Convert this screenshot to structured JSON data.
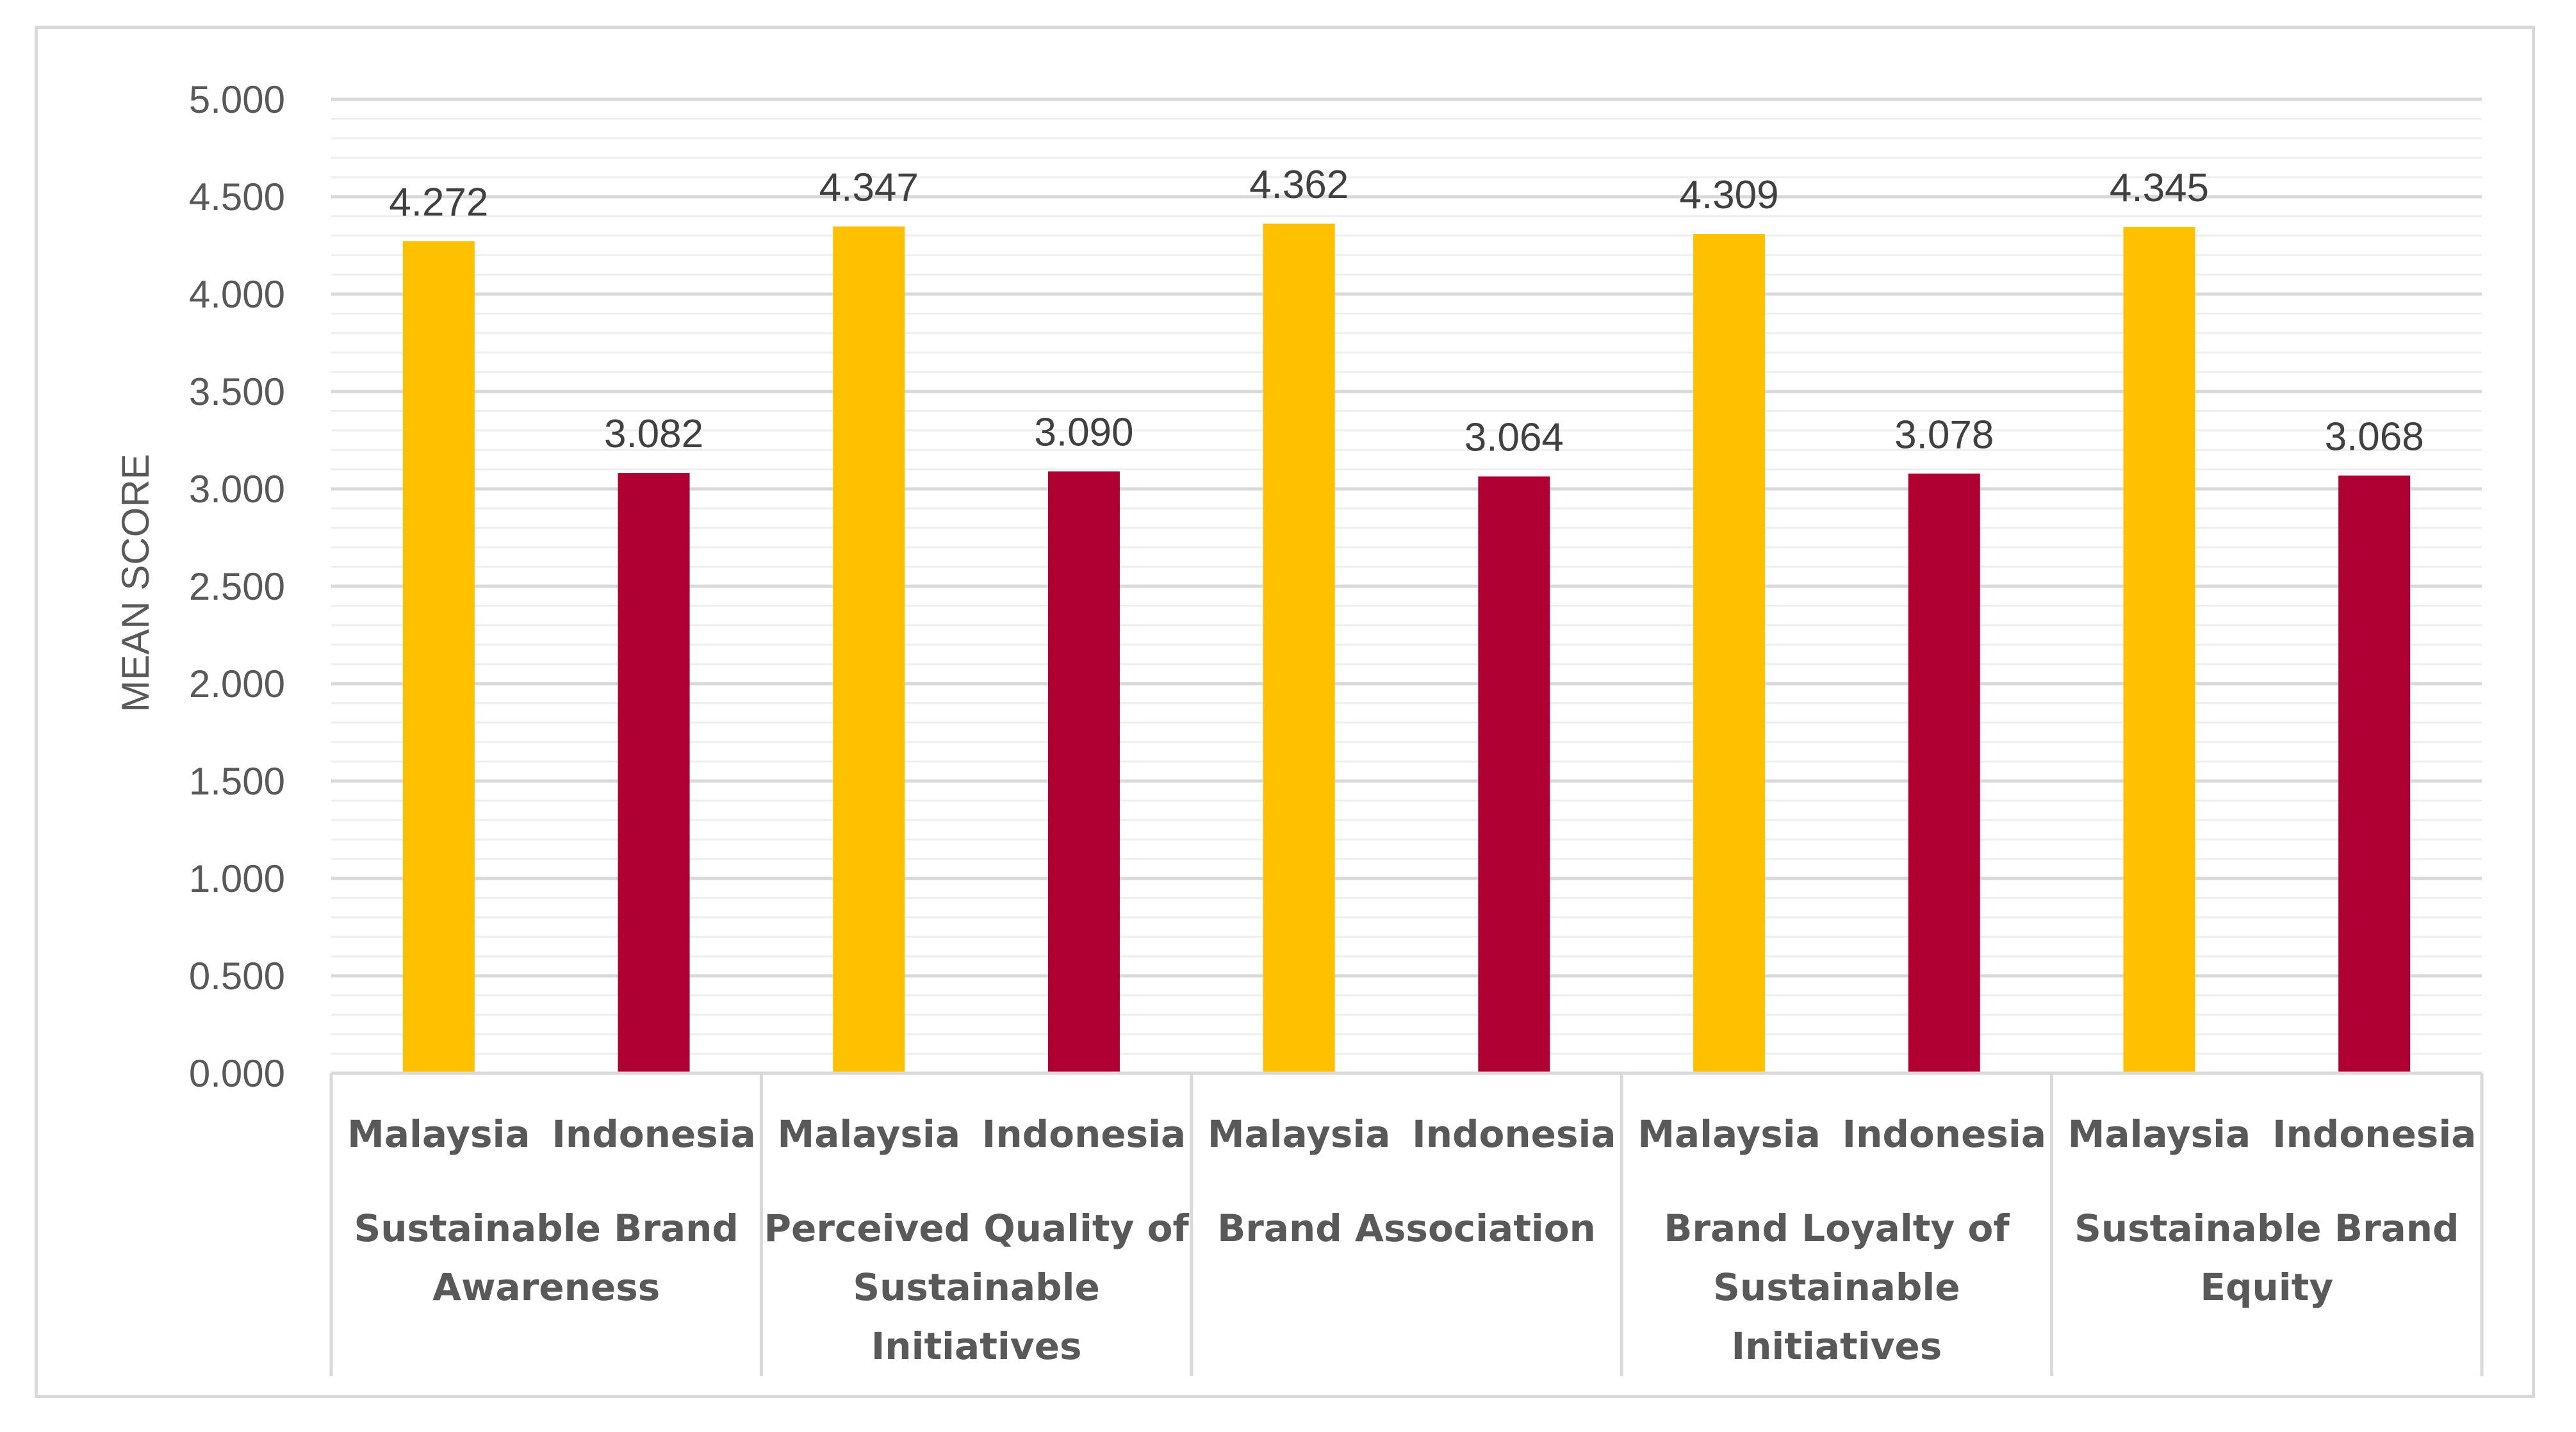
{
  "chart_data": {
    "type": "bar",
    "ylabel": "MEAN SCORE",
    "ylim": [
      0,
      5
    ],
    "y_ticks": [
      "0.000",
      "0.500",
      "1.000",
      "1.500",
      "2.000",
      "2.500",
      "3.000",
      "3.500",
      "4.000",
      "4.500",
      "5.000"
    ],
    "grid": true,
    "groups": [
      {
        "name": "Sustainable Brand Awareness",
        "label_lines": [
          "Sustainable Brand",
          "Awareness"
        ],
        "bars": [
          {
            "category": "Malaysia",
            "value": 4.272,
            "label": "4.272"
          },
          {
            "category": "Indonesia",
            "value": 3.082,
            "label": "3.082"
          }
        ]
      },
      {
        "name": "Perceived Quality of Sustainable Initiatives",
        "label_lines": [
          "Perceived Quality of",
          "Sustainable",
          "Initiatives"
        ],
        "bars": [
          {
            "category": "Malaysia",
            "value": 4.347,
            "label": "4.347"
          },
          {
            "category": "Indonesia",
            "value": 3.09,
            "label": "3.090"
          }
        ]
      },
      {
        "name": "Brand Association",
        "label_lines": [
          "Brand Association"
        ],
        "bars": [
          {
            "category": "Malaysia",
            "value": 4.362,
            "label": "4.362"
          },
          {
            "category": "Indonesia",
            "value": 3.064,
            "label": "3.064"
          }
        ]
      },
      {
        "name": "Brand Loyalty of Sustainable Initiatives",
        "label_lines": [
          "Brand Loyalty of",
          "Sustainable",
          "Initiatives"
        ],
        "bars": [
          {
            "category": "Malaysia",
            "value": 4.309,
            "label": "4.309"
          },
          {
            "category": "Indonesia",
            "value": 3.078,
            "label": "3.078"
          }
        ]
      },
      {
        "name": "Sustainable Brand Equity",
        "label_lines": [
          "Sustainable Brand",
          "Equity"
        ],
        "bars": [
          {
            "category": "Malaysia",
            "value": 4.345,
            "label": "4.345"
          },
          {
            "category": "Indonesia",
            "value": 3.068,
            "label": "3.068"
          }
        ]
      }
    ],
    "colors": {
      "Malaysia": "#FFC000",
      "Indonesia": "#B00032"
    }
  }
}
